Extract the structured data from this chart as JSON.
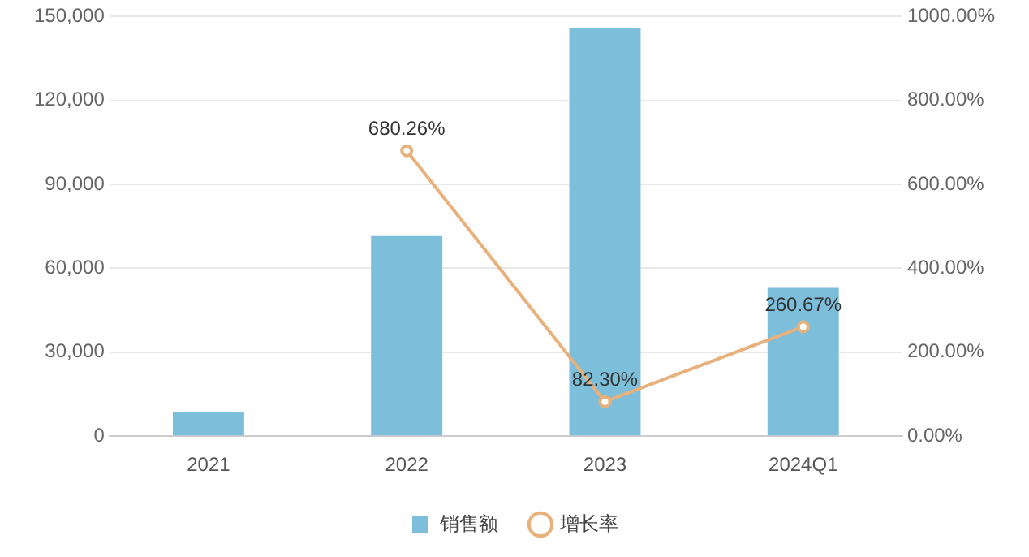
{
  "chart_data": {
    "type": "bar",
    "categories": [
      "2021",
      "2022",
      "2023",
      "2024Q1"
    ],
    "series": [
      {
        "name": "销售额",
        "color": "#7dbfdb",
        "values": [
          8700,
          71500,
          146000,
          53000
        ]
      },
      {
        "name": "增长率",
        "type": "line",
        "axis": "y2",
        "color": "#e8b07a",
        "values": [
          null,
          680.26,
          82.3,
          260.67
        ],
        "value_labels": [
          null,
          "680.26%",
          "82.30%",
          "260.67%"
        ],
        "marker": "circle"
      }
    ],
    "ylim": [
      0,
      150000
    ],
    "yticks": [
      0,
      {
        "value": 30000,
        "label": "30,000"
      },
      {
        "value": 60000,
        "label": "60,000"
      },
      {
        "value": 90000,
        "label": "90,000"
      },
      {
        "value": 120000,
        "label": "120,000"
      },
      {
        "value": 150000,
        "label": "150,000"
      }
    ],
    "y2lim": [
      0,
      1000
    ],
    "y2ticks": [
      {
        "value": 0,
        "label": "0.00%"
      },
      {
        "value": 200,
        "label": "200.00%"
      },
      {
        "value": 400,
        "label": "400.00%"
      },
      {
        "value": 600,
        "label": "600.00%"
      },
      {
        "value": 800,
        "label": "800.00%"
      },
      {
        "value": 1000,
        "label": "1000.00%"
      }
    ],
    "grid": "y",
    "legend": "bottom"
  }
}
